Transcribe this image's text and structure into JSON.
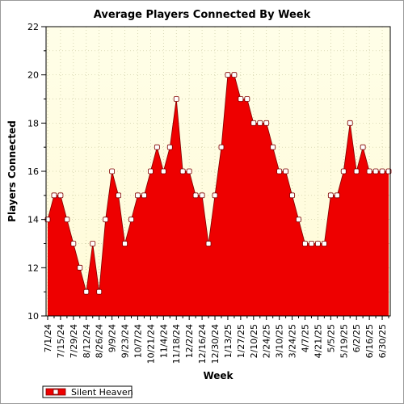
{
  "chart_data": {
    "type": "area",
    "title": "Average Players Connected By Week",
    "xlabel": "Week",
    "ylabel": "Players Connected",
    "ylim": [
      10,
      22
    ],
    "yticks": [
      10,
      12,
      14,
      16,
      18,
      20,
      22
    ],
    "grid": true,
    "legend_position": "bottom-left",
    "x": [
      "7/1/24",
      "7/8/24",
      "7/15/24",
      "7/22/24",
      "7/29/24",
      "8/5/24",
      "8/12/24",
      "8/19/24",
      "8/26/24",
      "9/2/24",
      "9/9/24",
      "9/16/24",
      "9/23/24",
      "9/30/24",
      "10/7/24",
      "10/14/24",
      "10/21/24",
      "10/28/24",
      "11/4/24",
      "11/11/24",
      "11/18/24",
      "11/25/24",
      "12/2/24",
      "12/9/24",
      "12/16/24",
      "12/23/24",
      "12/30/24",
      "1/6/25",
      "1/13/25",
      "1/20/25",
      "1/27/25",
      "2/3/25",
      "2/10/25",
      "2/17/25",
      "2/24/25",
      "3/3/25",
      "3/10/25",
      "3/17/25",
      "3/24/25",
      "3/31/25",
      "4/7/25",
      "4/14/25",
      "4/21/25",
      "4/28/25",
      "5/5/25",
      "5/12/25",
      "5/19/25",
      "5/26/25",
      "6/2/25",
      "6/9/25",
      "6/16/25",
      "6/23/25",
      "6/30/25",
      "7/7/25"
    ],
    "xtick_labels": [
      "7/1/24",
      "7/15/24",
      "7/29/24",
      "8/12/24",
      "8/26/24",
      "9/9/24",
      "9/23/24",
      "10/7/24",
      "10/21/24",
      "11/4/24",
      "11/18/24",
      "12/2/24",
      "12/16/24",
      "12/30/24",
      "1/13/25",
      "1/27/25",
      "2/10/25",
      "2/24/25",
      "3/10/25",
      "3/24/25",
      "4/7/25",
      "4/21/25",
      "5/5/25",
      "5/19/25",
      "6/2/25",
      "6/16/25",
      "6/30/25"
    ],
    "series": [
      {
        "name": "Silent Heaven",
        "color": "#ee0000",
        "values": [
          14,
          15,
          15,
          14,
          13,
          12,
          11,
          13,
          11,
          14,
          16,
          15,
          13,
          14,
          15,
          15,
          16,
          17,
          16,
          17,
          19,
          16,
          16,
          15,
          15,
          13,
          15,
          17,
          20,
          20,
          19,
          19,
          18,
          18,
          18,
          17,
          16,
          16,
          15,
          14,
          13,
          13,
          13,
          13,
          15,
          15,
          16,
          18,
          16,
          17,
          16,
          16,
          16,
          16
        ]
      }
    ],
    "colors": {
      "plot_background": "#fffde0",
      "grid": "#c8c8a0",
      "area_fill": "#ee0000",
      "marker_fill": "#ffffff",
      "marker_stroke": "#800000"
    }
  }
}
